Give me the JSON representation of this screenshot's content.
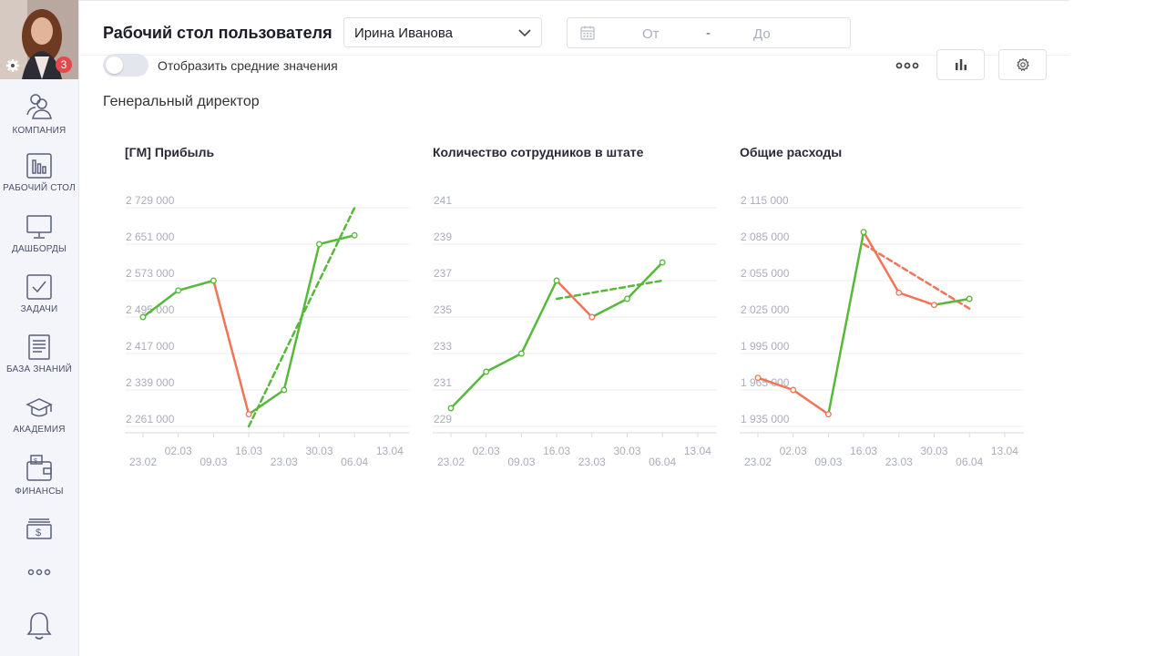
{
  "header": {
    "title": "Рабочий стол пользователя",
    "user": "Ирина Иванова",
    "date_from_placeholder": "От",
    "date_separator": "-",
    "date_to_placeholder": "До"
  },
  "toolbar": {
    "toggle_label": "Отобразить средние значения",
    "more_label": "•••"
  },
  "notifications": {
    "count": "3"
  },
  "sidebar": {
    "items": [
      {
        "label": "КОМПАНИЯ",
        "icon": "company-icon"
      },
      {
        "label": "РАБОЧИЙ СТОЛ",
        "icon": "desktop-chart-icon"
      },
      {
        "label": "ДАШБОРДЫ",
        "icon": "monitor-icon"
      },
      {
        "label": "ЗАДАЧИ",
        "icon": "checkbox-icon"
      },
      {
        "label": "БАЗА ЗНАНИЙ",
        "icon": "document-icon"
      },
      {
        "label": "АКАДЕМИЯ",
        "icon": "graduation-cap-icon"
      },
      {
        "label": "ФИНАНСЫ",
        "icon": "wallet-icon"
      }
    ],
    "extra_icons": [
      "cash-icon",
      "more-icon",
      "bell-icon"
    ]
  },
  "section": {
    "title": "Генеральный директор"
  },
  "colors": {
    "up": "#57b83a",
    "down": "#f07455",
    "grid": "#ececf2",
    "tick": "#a9adbd"
  },
  "chart_data": [
    {
      "type": "line",
      "title": "[ГМ] Прибыль",
      "x_ticks_top": [
        "02.03",
        "16.03",
        "30.03",
        "13.04"
      ],
      "x_ticks_bottom": [
        "23.02",
        "09.03",
        "23.03",
        "06.04"
      ],
      "y_ticks": [
        "2 729 000",
        "2 651 000",
        "2 573 000",
        "2 495 000",
        "2 417 000",
        "2 339 000",
        "2 261 000"
      ],
      "ylim": [
        2261000,
        2729000
      ],
      "x": [
        "23.02",
        "02.03",
        "09.03",
        "16.03",
        "23.03",
        "30.03",
        "06.04"
      ],
      "values": [
        2495000,
        2552000,
        2573000,
        2287000,
        2339000,
        2651000,
        2670000
      ],
      "trend": [
        [
          3,
          2261000
        ],
        [
          6.0,
          2729000
        ]
      ],
      "trend_color": "up"
    },
    {
      "type": "line",
      "title": "Количество сотрудников в штате",
      "x_ticks_top": [
        "02.03",
        "16.03",
        "30.03",
        "13.04"
      ],
      "x_ticks_bottom": [
        "23.02",
        "09.03",
        "23.03",
        "06.04"
      ],
      "y_ticks": [
        "241",
        "239",
        "237",
        "235",
        "233",
        "231",
        "229"
      ],
      "ylim": [
        229,
        241
      ],
      "x": [
        "23.02",
        "02.03",
        "09.03",
        "16.03",
        "23.03",
        "30.03",
        "06.04"
      ],
      "values": [
        230,
        232,
        233,
        237,
        235,
        236,
        238
      ],
      "trend": [
        [
          3,
          236
        ],
        [
          6,
          237
        ]
      ],
      "trend_color": "up"
    },
    {
      "type": "line",
      "title": "Общие расходы",
      "x_ticks_top": [
        "02.03",
        "16.03",
        "30.03",
        "13.04"
      ],
      "x_ticks_bottom": [
        "23.02",
        "09.03",
        "23.03",
        "06.04"
      ],
      "y_ticks": [
        "2 115 000",
        "2 085 000",
        "2 055 000",
        "2 025 000",
        "1 995 000",
        "1 965 000",
        "1 935 000"
      ],
      "ylim": [
        1935000,
        2115000
      ],
      "x": [
        "23.02",
        "02.03",
        "09.03",
        "16.03",
        "23.03",
        "30.03",
        "06.04"
      ],
      "values": [
        1975000,
        1965000,
        1945000,
        2095000,
        2045000,
        2035000,
        2040000
      ],
      "trend": [
        [
          3,
          2085000
        ],
        [
          6,
          2032000
        ]
      ],
      "trend_color": "down"
    }
  ]
}
